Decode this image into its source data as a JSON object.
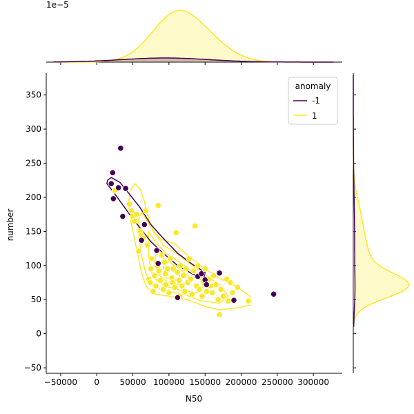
{
  "chart_data": {
    "type": "scatter",
    "title": "",
    "xlabel": "N50",
    "ylabel": "number",
    "xlim": [
      -70000,
      340000
    ],
    "ylim": [
      -58,
      382
    ],
    "grid": false,
    "xticks": [
      -50000,
      0,
      50000,
      100000,
      150000,
      200000,
      250000,
      300000
    ],
    "xtick_labels": [
      "−50000",
      "0",
      "50000",
      "100000",
      "150000",
      "200000",
      "250000",
      "300000"
    ],
    "yticks": [
      -50,
      0,
      50,
      100,
      150,
      200,
      250,
      300,
      350
    ],
    "ytick_labels": [
      "−50",
      "0",
      "50",
      "100",
      "150",
      "200",
      "250",
      "300",
      "350"
    ],
    "top_marginal_exponent": "1e−5",
    "legend": {
      "title": "anomaly",
      "placement": "top-right",
      "entries": [
        {
          "label": "-1",
          "color": "#440154"
        },
        {
          "label": "1",
          "color": "#fde725"
        }
      ]
    },
    "series": [
      {
        "name": "-1",
        "color": "#440154",
        "points": [
          [
            20000,
            220
          ],
          [
            22000,
            236
          ],
          [
            23000,
            198
          ],
          [
            30000,
            214
          ],
          [
            33000,
            272
          ],
          [
            36000,
            172
          ],
          [
            40000,
            213
          ],
          [
            62000,
            137
          ],
          [
            66000,
            160
          ],
          [
            83000,
            122
          ],
          [
            85000,
            103
          ],
          [
            112000,
            53
          ],
          [
            140000,
            84
          ],
          [
            145000,
            88
          ],
          [
            150000,
            79
          ],
          [
            152000,
            72
          ],
          [
            170000,
            89
          ],
          [
            190000,
            49
          ],
          [
            245000,
            58
          ]
        ]
      },
      {
        "name": "1",
        "color": "#fde725",
        "points": [
          [
            25000,
            210
          ],
          [
            45000,
            190
          ],
          [
            48000,
            180
          ],
          [
            50000,
            172
          ],
          [
            52000,
            165
          ],
          [
            55000,
            175
          ],
          [
            58000,
            121
          ],
          [
            60000,
            150
          ],
          [
            62000,
            145
          ],
          [
            65000,
            140
          ],
          [
            68000,
            180
          ],
          [
            70000,
            130
          ],
          [
            72000,
            80
          ],
          [
            74000,
            75
          ],
          [
            75000,
            95
          ],
          [
            76000,
            110
          ],
          [
            78000,
            62
          ],
          [
            80000,
            85
          ],
          [
            82000,
            70
          ],
          [
            84000,
            100
          ],
          [
            85000,
            188
          ],
          [
            86000,
            92
          ],
          [
            88000,
            78
          ],
          [
            90000,
            115
          ],
          [
            92000,
            65
          ],
          [
            94000,
            105
          ],
          [
            95000,
            88
          ],
          [
            96000,
            72
          ],
          [
            98000,
            95
          ],
          [
            100000,
            60
          ],
          [
            102000,
            110
          ],
          [
            104000,
            82
          ],
          [
            105000,
            75
          ],
          [
            106000,
            95
          ],
          [
            108000,
            68
          ],
          [
            110000,
            148
          ],
          [
            112000,
            90
          ],
          [
            114000,
            78
          ],
          [
            115000,
            55
          ],
          [
            116000,
            100
          ],
          [
            118000,
            70
          ],
          [
            120000,
            85
          ],
          [
            122000,
            62
          ],
          [
            124000,
            95
          ],
          [
            126000,
            75
          ],
          [
            128000,
            110
          ],
          [
            130000,
            80
          ],
          [
            132000,
            58
          ],
          [
            134000,
            92
          ],
          [
            136000,
            158
          ],
          [
            138000,
            70
          ],
          [
            140000,
            100
          ],
          [
            142000,
            65
          ],
          [
            144000,
            85
          ],
          [
            146000,
            55
          ],
          [
            148000,
            75
          ],
          [
            150000,
            95
          ],
          [
            152000,
            62
          ],
          [
            155000,
            80
          ],
          [
            158000,
            70
          ],
          [
            160000,
            60
          ],
          [
            162000,
            85
          ],
          [
            165000,
            72
          ],
          [
            168000,
            50
          ],
          [
            170000,
            28
          ],
          [
            172000,
            65
          ],
          [
            175000,
            55
          ],
          [
            180000,
            80
          ],
          [
            182000,
            48
          ],
          [
            185000,
            75
          ],
          [
            188000,
            60
          ],
          [
            195000,
            68
          ],
          [
            210000,
            48
          ]
        ]
      }
    ]
  }
}
